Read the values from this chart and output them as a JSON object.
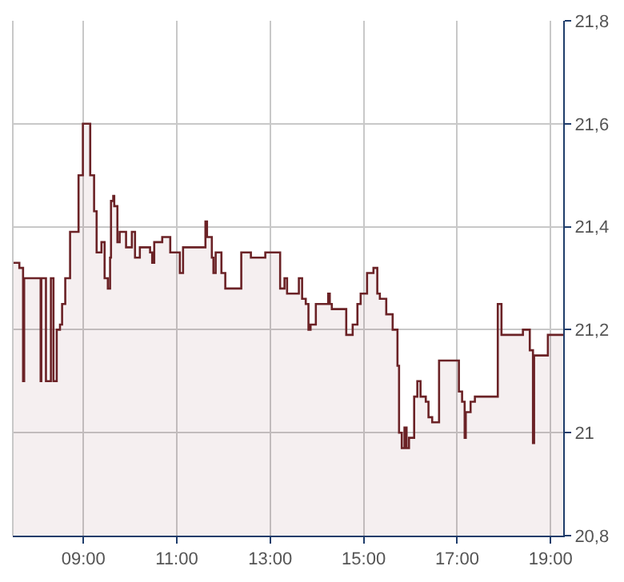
{
  "chart_data": {
    "type": "area",
    "x": [
      7.493,
      7.63,
      7.63,
      7.71,
      7.71,
      7.733,
      7.733,
      8.086,
      8.086,
      8.1,
      8.1,
      8.2,
      8.2,
      8.305,
      8.305,
      8.36,
      8.36,
      8.43,
      8.43,
      8.5,
      8.5,
      8.545,
      8.545,
      8.613,
      8.613,
      8.716,
      8.716,
      8.897,
      8.897,
      8.99,
      8.99,
      9.147,
      9.147,
      9.23,
      9.23,
      9.284,
      9.284,
      9.387,
      9.387,
      9.455,
      9.455,
      9.524,
      9.524,
      9.572,
      9.572,
      9.592,
      9.592,
      9.64,
      9.64,
      9.661,
      9.661,
      9.729,
      9.729,
      9.777,
      9.777,
      9.914,
      9.914,
      10.038,
      10.038,
      10.106,
      10.106,
      10.209,
      10.209,
      10.428,
      10.428,
      10.473,
      10.473,
      10.517,
      10.517,
      10.688,
      10.688,
      10.86,
      10.86,
      11.065,
      11.065,
      11.134,
      11.134,
      11.613,
      11.613,
      11.647,
      11.647,
      11.75,
      11.75,
      11.784,
      11.784,
      11.832,
      11.832,
      11.955,
      11.955,
      12.038,
      12.038,
      12.38,
      12.38,
      12.586,
      12.586,
      12.894,
      12.894,
      13.212,
      13.212,
      13.305,
      13.305,
      13.36,
      13.36,
      13.613,
      13.613,
      13.682,
      13.682,
      13.76,
      13.76,
      13.818,
      13.818,
      13.863,
      13.863,
      13.976,
      13.976,
      14.24,
      14.24,
      14.274,
      14.274,
      14.318,
      14.318,
      14.627,
      14.627,
      14.764,
      14.764,
      14.866,
      14.866,
      14.935,
      14.935,
      15.072,
      15.072,
      15.209,
      15.209,
      15.291,
      15.291,
      15.346,
      15.346,
      15.483,
      15.483,
      15.62,
      15.62,
      15.723,
      15.723,
      15.757,
      15.757,
      15.815,
      15.815,
      15.873,
      15.873,
      15.918,
      15.918,
      15.97,
      15.97,
      16.08,
      16.08,
      16.148,
      16.148,
      16.216,
      16.216,
      16.329,
      16.329,
      16.387,
      16.387,
      16.466,
      16.466,
      16.613,
      16.613,
      17.038,
      17.038,
      17.106,
      17.106,
      17.161,
      17.161,
      17.185,
      17.185,
      17.288,
      17.288,
      17.38,
      17.38,
      17.87,
      17.87,
      17.949,
      17.949,
      18.408,
      18.408,
      18.555,
      18.555,
      18.623,
      18.623,
      18.647,
      18.647,
      18.942,
      18.942,
      19.27
    ],
    "series": [
      {
        "color": "#6b2226",
        "values": [
          21.33,
          21.33,
          21.32,
          21.32,
          21.1,
          21.1,
          21.3,
          21.3,
          21.1,
          21.1,
          21.3,
          21.3,
          21.1,
          21.1,
          21.3,
          21.3,
          21.1,
          21.1,
          21.2,
          21.2,
          21.21,
          21.21,
          21.25,
          21.25,
          21.3,
          21.3,
          21.39,
          21.39,
          21.5,
          21.5,
          21.6,
          21.6,
          21.5,
          21.5,
          21.43,
          21.43,
          21.35,
          21.35,
          21.37,
          21.37,
          21.3,
          21.3,
          21.28,
          21.28,
          21.34,
          21.34,
          21.45,
          21.45,
          21.46,
          21.46,
          21.44,
          21.44,
          21.37,
          21.37,
          21.39,
          21.39,
          21.36,
          21.36,
          21.39,
          21.39,
          21.34,
          21.34,
          21.36,
          21.36,
          21.35,
          21.35,
          21.33,
          21.33,
          21.37,
          21.37,
          21.38,
          21.38,
          21.35,
          21.35,
          21.31,
          21.31,
          21.36,
          21.36,
          21.41,
          21.41,
          21.38,
          21.38,
          21.34,
          21.34,
          21.31,
          21.31,
          21.35,
          21.35,
          21.31,
          21.31,
          21.28,
          21.28,
          21.35,
          21.35,
          21.34,
          21.34,
          21.35,
          21.35,
          21.28,
          21.28,
          21.3,
          21.3,
          21.27,
          21.27,
          21.3,
          21.3,
          21.26,
          21.26,
          21.25,
          21.25,
          21.2,
          21.2,
          21.21,
          21.21,
          21.25,
          21.25,
          21.27,
          21.27,
          21.25,
          21.25,
          21.24,
          21.24,
          21.19,
          21.19,
          21.21,
          21.21,
          21.25,
          21.25,
          21.27,
          21.27,
          21.31,
          21.31,
          21.32,
          21.32,
          21.27,
          21.27,
          21.26,
          21.26,
          21.23,
          21.23,
          21.2,
          21.2,
          21.13,
          21.13,
          21.0,
          21.0,
          20.97,
          20.97,
          21.01,
          21.01,
          20.97,
          20.97,
          20.99,
          20.99,
          21.07,
          21.07,
          21.1,
          21.1,
          21.07,
          21.07,
          21.06,
          21.06,
          21.03,
          21.03,
          21.02,
          21.02,
          21.14,
          21.14,
          21.08,
          21.08,
          21.06,
          21.06,
          20.99,
          20.99,
          21.04,
          21.04,
          21.06,
          21.06,
          21.07,
          21.07,
          21.25,
          21.25,
          21.19,
          21.19,
          21.2,
          21.2,
          21.16,
          21.16,
          20.98,
          20.98,
          21.15,
          21.15,
          21.19,
          21.19
        ]
      }
    ],
    "xlim": [
      7.49,
      19.27
    ],
    "xticks": [
      {
        "value": 9,
        "label": "09:00"
      },
      {
        "value": 11,
        "label": "11:00"
      },
      {
        "value": 13,
        "label": "13:00"
      },
      {
        "value": 15,
        "label": "15:00"
      },
      {
        "value": 17,
        "label": "17:00"
      },
      {
        "value": 19,
        "label": "19:00"
      }
    ],
    "ylim": [
      20.8,
      21.8
    ],
    "yticks": [
      {
        "value": 20.8,
        "label": "20,8"
      },
      {
        "value": 21,
        "label": "21"
      },
      {
        "value": 21.2,
        "label": "21,2"
      },
      {
        "value": 21.4,
        "label": "21,4"
      },
      {
        "value": 21.6,
        "label": "21,6"
      },
      {
        "value": 21.8,
        "label": "21,8"
      }
    ],
    "grid": true
  }
}
